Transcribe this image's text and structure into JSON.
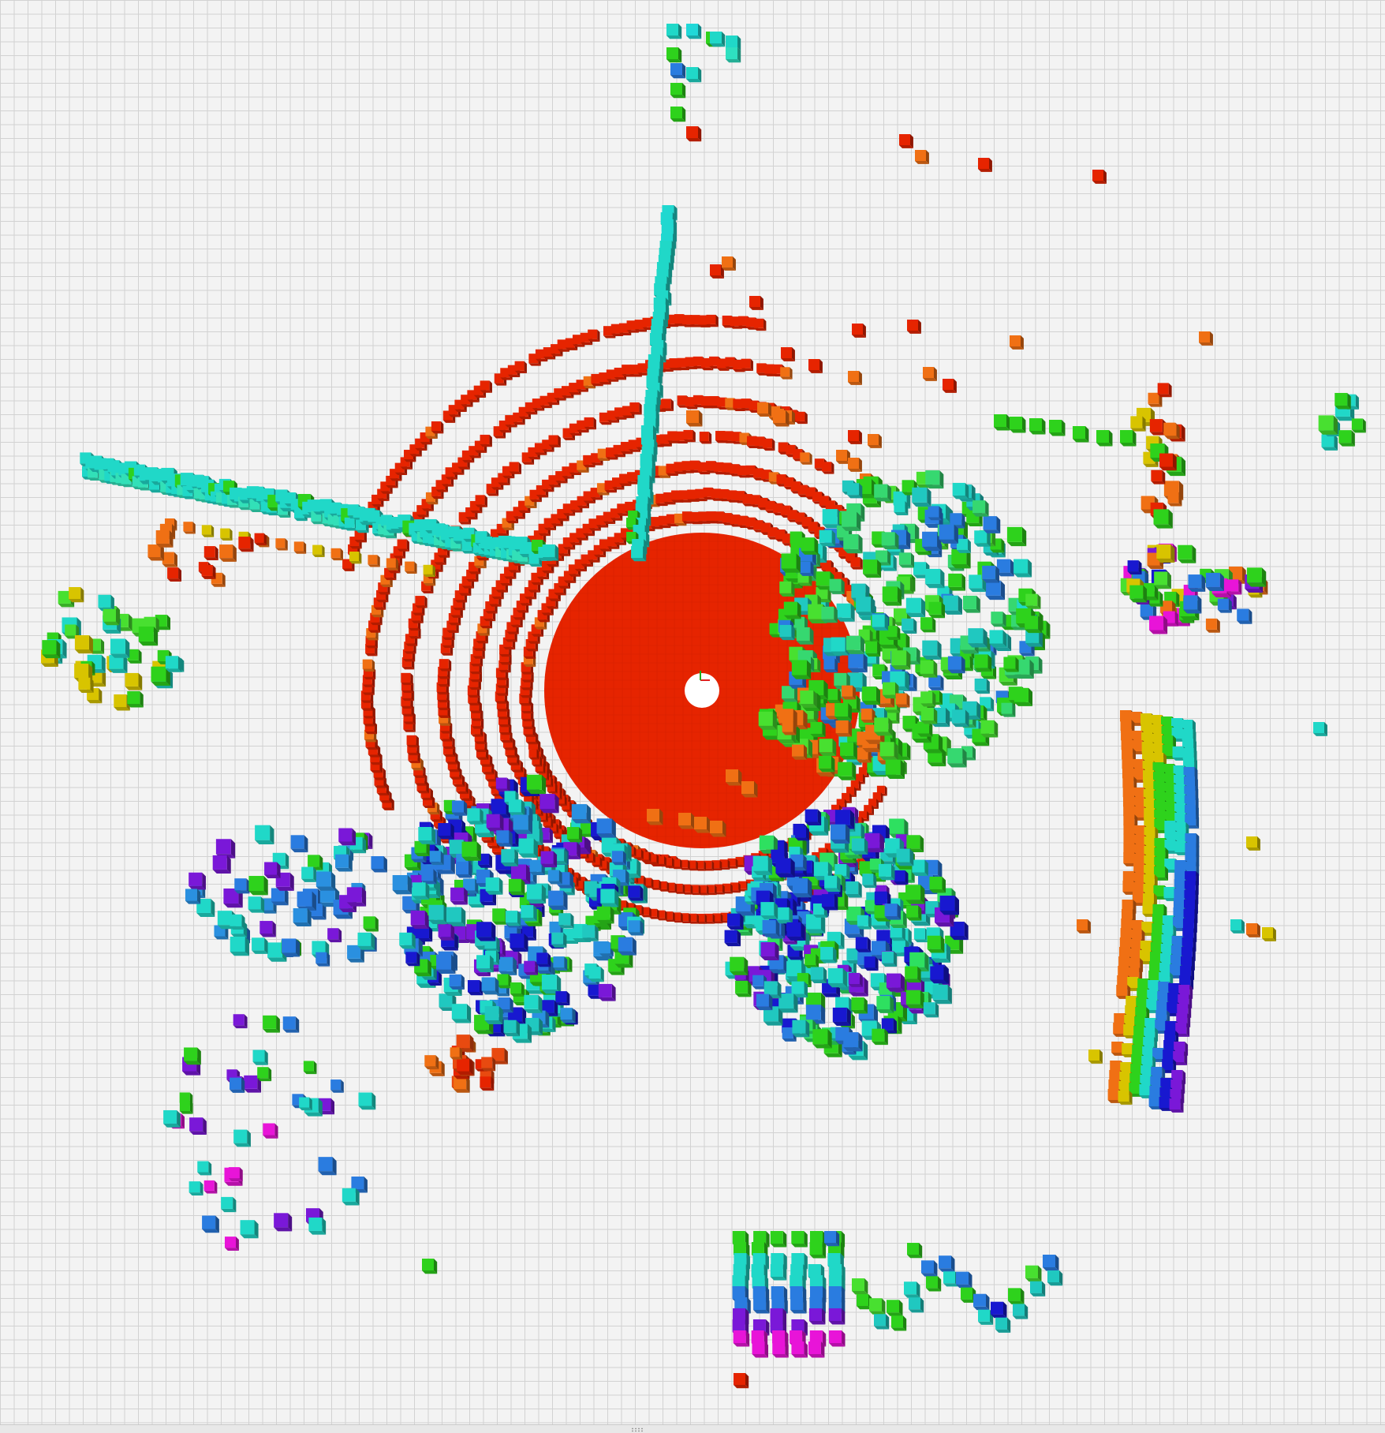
{
  "viewer": {
    "background_color": "#f3f3f3",
    "grid_color": "#d2d2d2",
    "colormap": [
      "#e62400",
      "#f07014",
      "#d8c400",
      "#2ed21c",
      "#20d8c8",
      "#2a7ce0",
      "#1818d0",
      "#7a18d8",
      "#e814d8"
    ]
  },
  "icons": {
    "origin_axes": "origin-axes-icon",
    "splitter": "grip-icon"
  }
}
